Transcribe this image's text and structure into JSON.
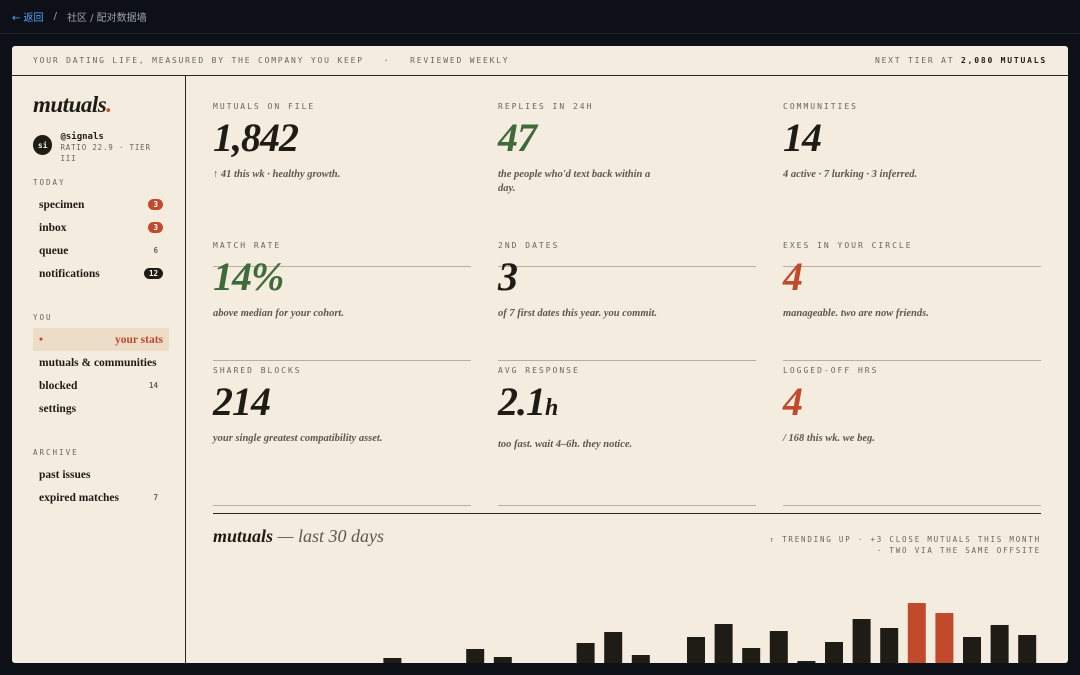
{
  "topbar": {
    "back": "← 返回",
    "separator": "/",
    "crumb": "社区 / 配对数据墙"
  },
  "header": {
    "tagline": "YOUR DATING LIFE, MEASURED BY THE COMPANY YOU KEEP",
    "dot": "·",
    "cadence": "REVIEWED WEEKLY",
    "next_label": "NEXT TIER AT",
    "next_value": "2,080 MUTUALS"
  },
  "sidebar": {
    "logo": "mutuals",
    "logo_dot": ".",
    "user": {
      "avatar": "si",
      "handle": "@signals",
      "meta": "RATIO 22.9 · TIER III"
    },
    "sections": [
      {
        "title": "TODAY",
        "items": [
          {
            "label": "specimen",
            "badge": "3",
            "badge_style": "red"
          },
          {
            "label": "inbox",
            "badge": "3",
            "badge_style": "red"
          },
          {
            "label": "queue",
            "badge": "6",
            "badge_style": "plain"
          },
          {
            "label": "notifications",
            "badge": "12",
            "badge_style": "dark"
          }
        ]
      },
      {
        "title": "YOU",
        "items": [
          {
            "label": "your stats",
            "marker": "•",
            "active": true
          },
          {
            "label": "mutuals & communities"
          },
          {
            "label": "blocked",
            "badge": "14",
            "badge_style": "plain"
          },
          {
            "label": "settings"
          }
        ]
      },
      {
        "title": "ARCHIVE",
        "items": [
          {
            "label": "past issues"
          },
          {
            "label": "expired matches",
            "badge": "7",
            "badge_style": "plain"
          }
        ]
      }
    ]
  },
  "stats": [
    {
      "label": "MUTUALS ON FILE",
      "value": "1,842",
      "color": "dark",
      "description": "↑ 41 this wk · healthy growth."
    },
    {
      "label": "REPLIES IN 24H",
      "value": "47",
      "color": "green",
      "description": "the people who'd text back within a day."
    },
    {
      "label": "COMMUNITIES",
      "value": "14",
      "color": "dark",
      "description": "4 active · 7 lurking · 3 inferred."
    },
    {
      "label": "MATCH RATE",
      "value": "14%",
      "color": "green",
      "description": "above median for your cohort."
    },
    {
      "label": "2ND DATES",
      "value": "3",
      "color": "dark",
      "description": "of 7 first dates this year. you commit."
    },
    {
      "label": "EXES IN YOUR CIRCLE",
      "value": "4",
      "color": "red",
      "description": "manageable. two are now friends."
    },
    {
      "label": "SHARED BLOCKS",
      "value": "214",
      "color": "dark",
      "description": "your single greatest compatibility asset."
    },
    {
      "label": "AVG RESPONSE",
      "value": "2.1",
      "unit": "h",
      "color": "dark",
      "description": "too fast. wait 4–6h. they notice."
    },
    {
      "label": "LOGGED-OFF HRS",
      "value": "4",
      "color": "red",
      "description": "/ 168 this wk. we beg."
    }
  ],
  "chart_data": {
    "type": "bar",
    "title": "mutuals",
    "title_rest": "— last 30 days",
    "notes": [
      "↑ TRENDING UP · +3 CLOSE MUTUALS THIS MONTH",
      "· TWO VIA THE SAME OFFSITE"
    ],
    "values": [
      0,
      0,
      0,
      0,
      0,
      0,
      5,
      0,
      0,
      14,
      6,
      0,
      0,
      20,
      31,
      8,
      0,
      26,
      39,
      15,
      32,
      2,
      21,
      44,
      35,
      60,
      50,
      26,
      38,
      28
    ],
    "ylim": [
      0,
      60
    ],
    "color": "#1f1c16",
    "highlight": [
      25,
      26
    ],
    "highlight_color": "#c24a2c"
  }
}
